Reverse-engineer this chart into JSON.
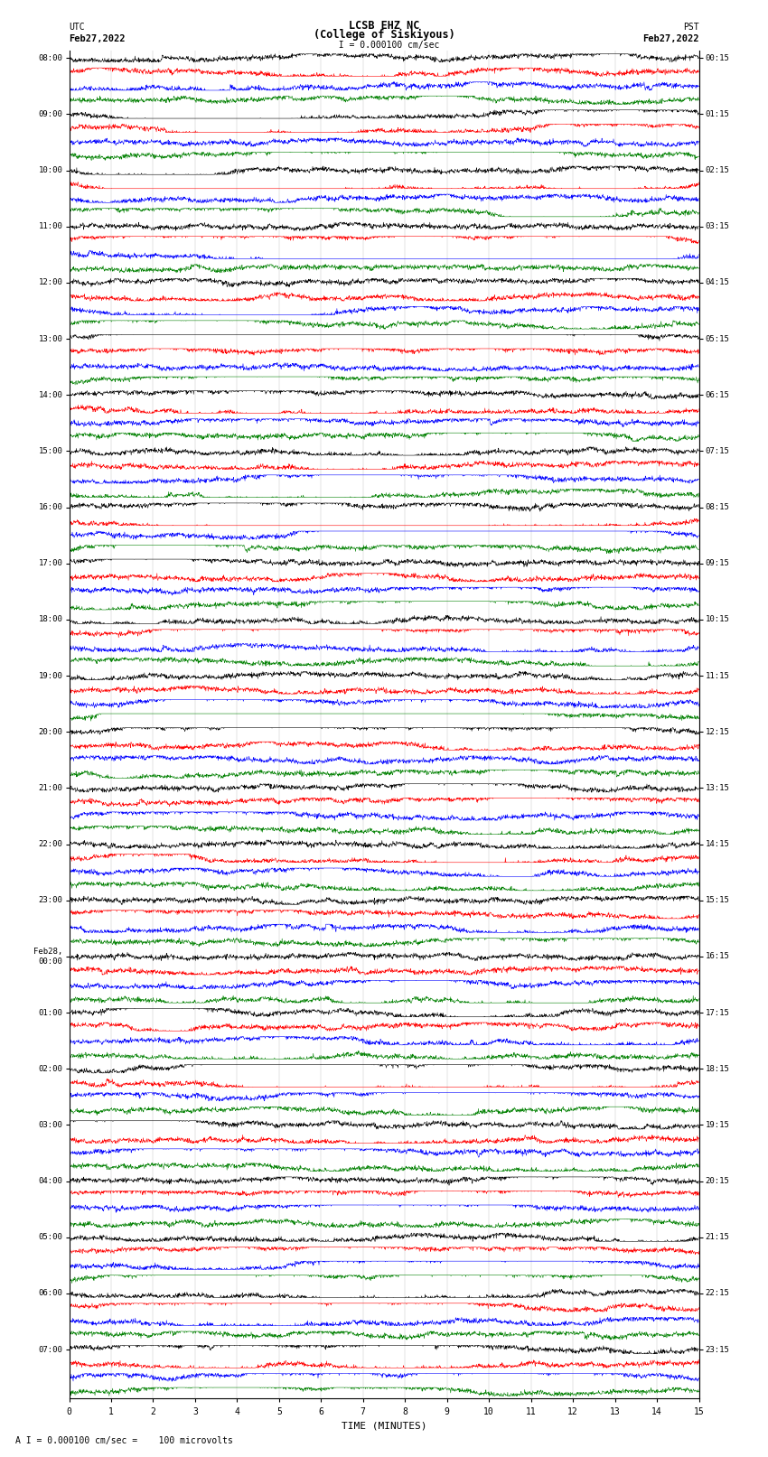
{
  "title_line1": "LCSB EHZ NC",
  "title_line2": "(College of Siskiyous)",
  "scale_text": "  I = 0.000100 cm/sec",
  "footer_text": "A I = 0.000100 cm/sec =    100 microvolts",
  "xlabel": "TIME (MINUTES)",
  "left_label": "UTC",
  "right_label": "PST",
  "left_date": "Feb27,2022",
  "right_date": "Feb27,2022",
  "background_color": "#ffffff",
  "trace_colors": [
    "black",
    "red",
    "blue",
    "green"
  ],
  "xmin": 0,
  "xmax": 15,
  "xticks": [
    0,
    1,
    2,
    3,
    4,
    5,
    6,
    7,
    8,
    9,
    10,
    11,
    12,
    13,
    14,
    15
  ],
  "noise_seed": 42,
  "total_traces": 96,
  "trace_amplitude": 0.3,
  "trace_lw": 0.4
}
